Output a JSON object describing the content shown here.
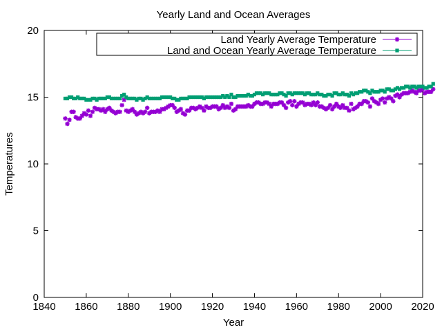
{
  "chart_data": {
    "type": "line",
    "title": "Yearly Land and Ocean Averages",
    "xlabel": "Year",
    "ylabel": "Temperatures",
    "xlim": [
      1840,
      2020
    ],
    "ylim": [
      0,
      20
    ],
    "x_ticks": [
      "1840",
      "1860",
      "1880",
      "1900",
      "1920",
      "1940",
      "1960",
      "1980",
      "2000",
      "2020"
    ],
    "y_ticks": [
      "0",
      "5",
      "10",
      "15",
      "20"
    ],
    "grid": false,
    "legend_position": "top-right",
    "series": [
      {
        "name": "Land Yearly Average Temperature",
        "color": "#9400d3",
        "marker": "star",
        "x_start": 1850,
        "values": [
          13.4,
          13.0,
          13.3,
          13.9,
          13.9,
          13.5,
          13.4,
          13.4,
          13.6,
          13.8,
          13.7,
          14.0,
          13.6,
          13.9,
          14.2,
          14.1,
          14.1,
          14.0,
          14.1,
          13.9,
          14.1,
          14.2,
          14.0,
          13.9,
          13.8,
          13.9,
          13.9,
          14.4,
          14.8,
          14.0,
          13.9,
          14.0,
          14.1,
          13.9,
          13.7,
          13.8,
          13.9,
          13.8,
          13.9,
          14.2,
          13.8,
          13.9,
          13.9,
          13.9,
          14.0,
          13.9,
          14.1,
          14.1,
          14.2,
          14.3,
          14.4,
          14.4,
          14.2,
          13.9,
          14.0,
          14.1,
          13.8,
          13.7,
          14.0,
          14.0,
          14.2,
          14.2,
          14.1,
          14.2,
          14.3,
          14.2,
          14.0,
          14.3,
          14.2,
          14.2,
          14.3,
          14.3,
          14.3,
          14.1,
          14.2,
          14.4,
          14.2,
          14.3,
          14.2,
          14.5,
          14.0,
          14.1,
          14.3,
          14.3,
          14.3,
          14.3,
          14.3,
          14.4,
          14.3,
          14.3,
          14.5,
          14.6,
          14.6,
          14.5,
          14.5,
          14.6,
          14.6,
          14.5,
          14.3,
          14.5,
          14.5,
          14.5,
          14.6,
          14.6,
          14.4,
          14.2,
          14.6,
          14.7,
          14.4,
          14.7,
          14.3,
          14.5,
          14.6,
          14.6,
          14.4,
          14.5,
          14.5,
          14.4,
          14.6,
          14.4,
          14.6,
          14.3,
          14.3,
          14.2,
          14.1,
          14.2,
          14.4,
          14.1,
          14.3,
          14.5,
          14.3,
          14.2,
          14.4,
          14.2,
          14.2,
          14.0,
          14.5,
          14.1,
          14.2,
          14.3,
          14.5,
          14.5,
          14.7,
          14.7,
          14.6,
          14.3,
          14.9,
          14.7,
          14.6,
          14.5,
          14.8,
          14.9,
          14.6,
          14.9,
          15.0,
          14.9,
          14.7,
          15.1,
          15.2,
          15.0,
          15.2,
          15.3,
          15.3,
          15.3,
          15.4,
          15.5,
          15.4,
          15.3,
          15.5,
          15.5,
          15.6,
          15.3,
          15.4,
          15.4,
          15.4,
          15.6
        ]
      },
      {
        "name": "Land and Ocean Yearly Average Temperature",
        "color": "#009e73",
        "marker": "square",
        "x_start": 1850,
        "values": [
          14.9,
          14.9,
          15.0,
          15.0,
          14.9,
          14.9,
          15.0,
          14.9,
          14.9,
          14.9,
          14.8,
          14.8,
          14.8,
          14.9,
          14.9,
          14.8,
          14.9,
          14.9,
          14.9,
          14.9,
          15.0,
          15.0,
          14.9,
          14.9,
          14.9,
          14.9,
          14.9,
          15.1,
          15.2,
          15.0,
          14.9,
          14.9,
          14.9,
          14.9,
          14.8,
          14.9,
          14.9,
          14.8,
          14.9,
          15.0,
          14.9,
          14.9,
          14.9,
          14.9,
          14.9,
          14.9,
          15.0,
          15.0,
          15.0,
          15.0,
          15.0,
          14.9,
          14.9,
          14.8,
          14.8,
          14.9,
          14.9,
          14.9,
          14.9,
          15.0,
          15.0,
          15.0,
          15.0,
          15.0,
          15.0,
          15.0,
          14.9,
          15.0,
          15.0,
          15.0,
          15.0,
          15.0,
          15.0,
          15.0,
          15.0,
          15.1,
          15.0,
          15.1,
          15.0,
          15.2,
          15.0,
          15.0,
          15.1,
          15.1,
          15.1,
          15.1,
          15.1,
          15.2,
          15.1,
          15.1,
          15.2,
          15.3,
          15.3,
          15.3,
          15.2,
          15.3,
          15.3,
          15.3,
          15.2,
          15.2,
          15.2,
          15.2,
          15.3,
          15.3,
          15.2,
          15.1,
          15.3,
          15.3,
          15.2,
          15.3,
          15.3,
          15.3,
          15.3,
          15.3,
          15.2,
          15.3,
          15.3,
          15.2,
          15.2,
          15.2,
          15.3,
          15.2,
          15.2,
          15.1,
          15.1,
          15.2,
          15.2,
          15.1,
          15.3,
          15.3,
          15.2,
          15.2,
          15.3,
          15.2,
          15.2,
          15.1,
          15.3,
          15.2,
          15.3,
          15.3,
          15.4,
          15.4,
          15.5,
          15.5,
          15.4,
          15.3,
          15.5,
          15.4,
          15.4,
          15.4,
          15.5,
          15.5,
          15.4,
          15.6,
          15.6,
          15.5,
          15.5,
          15.6,
          15.7,
          15.6,
          15.7,
          15.7,
          15.8,
          15.8,
          15.7,
          15.8,
          15.8,
          15.7,
          15.8,
          15.8,
          15.8,
          15.7,
          15.7,
          15.8,
          15.8,
          16.0
        ]
      }
    ]
  }
}
